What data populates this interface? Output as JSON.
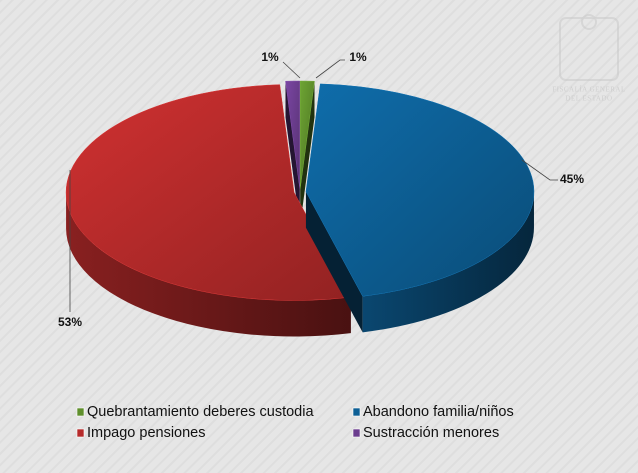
{
  "chart_data": {
    "type": "pie3d",
    "categories": [
      "Quebrantamiento deberes custodia",
      "Abandono familia/niños",
      "Impago pensiones",
      "Sustracción menores"
    ],
    "values": [
      1,
      45,
      53,
      1
    ],
    "value_labels": [
      "1%",
      "45%",
      "53%",
      "1%"
    ],
    "colors": [
      "#5f8f2c",
      "#0d5f95",
      "#b62b2b",
      "#6b3d8e"
    ],
    "legend": "bottom"
  },
  "logo": [
    "FISCALÍA GENERAL",
    "DEL ESTADO"
  ]
}
